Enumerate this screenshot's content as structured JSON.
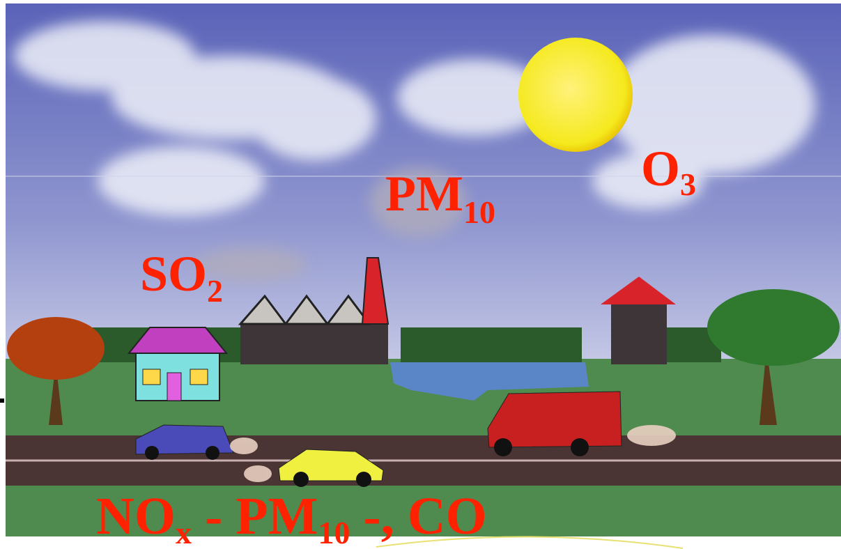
{
  "labels": [
    {
      "text": "O",
      "sub": "3"
    },
    {
      "text": "PM",
      "sub": "10"
    },
    {
      "text": "SO",
      "sub": "2"
    }
  ],
  "bottom_label": {
    "text1": "NO",
    "sub1": "x",
    "text2": " - PM",
    "sub2": "10",
    "text3": " -, CO"
  }
}
